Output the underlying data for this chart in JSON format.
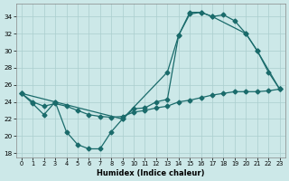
{
  "xlabel": "Humidex (Indice chaleur)",
  "xlim": [
    -0.5,
    23.5
  ],
  "ylim": [
    17.5,
    35.5
  ],
  "xticks": [
    0,
    1,
    2,
    3,
    4,
    5,
    6,
    7,
    8,
    9,
    10,
    11,
    12,
    13,
    14,
    15,
    16,
    17,
    18,
    19,
    20,
    21,
    22,
    23
  ],
  "yticks": [
    18,
    20,
    22,
    24,
    26,
    28,
    30,
    32,
    34
  ],
  "bg_color": "#cce8e8",
  "grid_color": "#aacece",
  "line_color": "#1a6b6b",
  "line1_x": [
    0,
    1,
    2,
    3,
    4,
    5,
    6,
    7,
    8,
    9,
    10,
    11,
    12,
    13,
    14,
    15,
    16,
    17,
    18,
    19,
    20,
    21,
    22,
    23
  ],
  "line1_y": [
    25.0,
    23.8,
    22.5,
    24.0,
    20.5,
    19.0,
    18.5,
    18.5,
    20.5,
    22.0,
    23.2,
    23.3,
    24.0,
    24.3,
    31.8,
    34.5,
    34.5,
    34.0,
    34.2,
    33.5,
    32.0,
    30.0,
    27.5,
    25.5
  ],
  "line2_x": [
    0,
    1,
    2,
    3,
    4,
    5,
    6,
    7,
    8,
    9,
    10,
    11,
    12,
    13,
    14,
    15,
    16,
    17,
    18,
    19,
    20,
    21,
    22,
    23
  ],
  "line2_y": [
    25.0,
    24.0,
    23.5,
    23.8,
    23.5,
    23.0,
    22.5,
    22.3,
    22.2,
    22.3,
    22.8,
    23.0,
    23.3,
    23.5,
    24.0,
    24.2,
    24.5,
    24.8,
    25.0,
    25.2,
    25.2,
    25.2,
    25.3,
    25.5
  ],
  "line3_x": [
    0,
    3,
    9,
    13,
    14,
    15,
    16,
    17,
    20,
    21,
    23
  ],
  "line3_y": [
    25.0,
    24.0,
    22.0,
    27.5,
    31.8,
    34.3,
    34.5,
    34.0,
    32.0,
    30.0,
    25.5
  ]
}
